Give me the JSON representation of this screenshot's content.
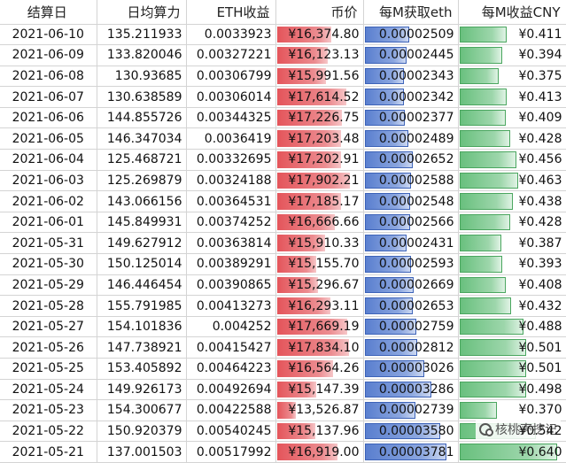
{
  "table": {
    "headers": [
      "结算日",
      "日均算力",
      "ETH收益",
      "币价",
      "每M获取eth",
      "每M收益CNY"
    ],
    "rows": [
      {
        "date": "2021-06-10",
        "hashrate": "135.211933",
        "eth": "0.0033923",
        "price": "¥16,374.80",
        "per_m_eth": "0.00002509",
        "per_m_cny": "¥0.411"
      },
      {
        "date": "2021-06-09",
        "hashrate": "133.820046",
        "eth": "0.00327221",
        "price": "¥16,123.13",
        "per_m_eth": "0.00002445",
        "per_m_cny": "¥0.394"
      },
      {
        "date": "2021-06-08",
        "hashrate": "130.93685",
        "eth": "0.00306799",
        "price": "¥15,991.56",
        "per_m_eth": "0.00002343",
        "per_m_cny": "¥0.375"
      },
      {
        "date": "2021-06-07",
        "hashrate": "130.638589",
        "eth": "0.00306014",
        "price": "¥17,614.52",
        "per_m_eth": "0.00002342",
        "per_m_cny": "¥0.413"
      },
      {
        "date": "2021-06-06",
        "hashrate": "144.855726",
        "eth": "0.00344325",
        "price": "¥17,226.75",
        "per_m_eth": "0.00002377",
        "per_m_cny": "¥0.409"
      },
      {
        "date": "2021-06-05",
        "hashrate": "146.347034",
        "eth": "0.0036419",
        "price": "¥17,203.48",
        "per_m_eth": "0.00002489",
        "per_m_cny": "¥0.428"
      },
      {
        "date": "2021-06-04",
        "hashrate": "125.468721",
        "eth": "0.00332695",
        "price": "¥17,202.91",
        "per_m_eth": "0.00002652",
        "per_m_cny": "¥0.456"
      },
      {
        "date": "2021-06-03",
        "hashrate": "125.269879",
        "eth": "0.00324188",
        "price": "¥17,902.21",
        "per_m_eth": "0.00002588",
        "per_m_cny": "¥0.463"
      },
      {
        "date": "2021-06-02",
        "hashrate": "143.066156",
        "eth": "0.00364531",
        "price": "¥17,185.17",
        "per_m_eth": "0.00002548",
        "per_m_cny": "¥0.438"
      },
      {
        "date": "2021-06-01",
        "hashrate": "145.849931",
        "eth": "0.00374252",
        "price": "¥16,666.66",
        "per_m_eth": "0.00002566",
        "per_m_cny": "¥0.428"
      },
      {
        "date": "2021-05-31",
        "hashrate": "149.627912",
        "eth": "0.00363814",
        "price": "¥15,910.33",
        "per_m_eth": "0.00002431",
        "per_m_cny": "¥0.387"
      },
      {
        "date": "2021-05-30",
        "hashrate": "150.125014",
        "eth": "0.00389291",
        "price": "¥15,155.70",
        "per_m_eth": "0.00002593",
        "per_m_cny": "¥0.393"
      },
      {
        "date": "2021-05-29",
        "hashrate": "146.446454",
        "eth": "0.00390865",
        "price": "¥15,296.67",
        "per_m_eth": "0.00002669",
        "per_m_cny": "¥0.408"
      },
      {
        "date": "2021-05-28",
        "hashrate": "155.791985",
        "eth": "0.00413273",
        "price": "¥16,293.11",
        "per_m_eth": "0.00002653",
        "per_m_cny": "¥0.432"
      },
      {
        "date": "2021-05-27",
        "hashrate": "154.101836",
        "eth": "0.004252",
        "price": "¥17,669.19",
        "per_m_eth": "0.00002759",
        "per_m_cny": "¥0.488"
      },
      {
        "date": "2021-05-26",
        "hashrate": "147.738921",
        "eth": "0.00415427",
        "price": "¥17,834.10",
        "per_m_eth": "0.00002812",
        "per_m_cny": "¥0.501"
      },
      {
        "date": "2021-05-25",
        "hashrate": "153.405892",
        "eth": "0.00464223",
        "price": "¥16,564.26",
        "per_m_eth": "0.00003026",
        "per_m_cny": "¥0.501"
      },
      {
        "date": "2021-05-24",
        "hashrate": "149.926173",
        "eth": "0.00492694",
        "price": "¥15,147.39",
        "per_m_eth": "0.00003286",
        "per_m_cny": "¥0.498"
      },
      {
        "date": "2021-05-23",
        "hashrate": "154.300677",
        "eth": "0.00422588",
        "price": "¥13,526.87",
        "per_m_eth": "0.00002739",
        "per_m_cny": "¥0.370"
      },
      {
        "date": "2021-05-22",
        "hashrate": "150.920379",
        "eth": "0.00540245",
        "price": "¥15,137.96",
        "per_m_eth": "0.00003580",
        "per_m_cny": "¥0.542"
      },
      {
        "date": "2021-05-21",
        "hashrate": "137.001503",
        "eth": "0.00517992",
        "price": "¥16,919.00",
        "per_m_eth": "0.00003781",
        "per_m_cny": "¥0.640"
      }
    ]
  },
  "bar_scale": {
    "price": {
      "min": 12000,
      "max": 19000
    },
    "per_m_eth": {
      "min": 1e-05,
      "max": 4.2e-05
    },
    "per_m_cny": {
      "min": 0.2,
      "max": 0.68
    }
  },
  "colors": {
    "price_bar": "#e4555b",
    "eth_bar": "#5a7fcf",
    "cny_bar": "#69c07e",
    "grid": "#d4d4d4"
  },
  "watermark": {
    "text": "核桃壳挖记",
    "icon": "wechat-icon"
  }
}
